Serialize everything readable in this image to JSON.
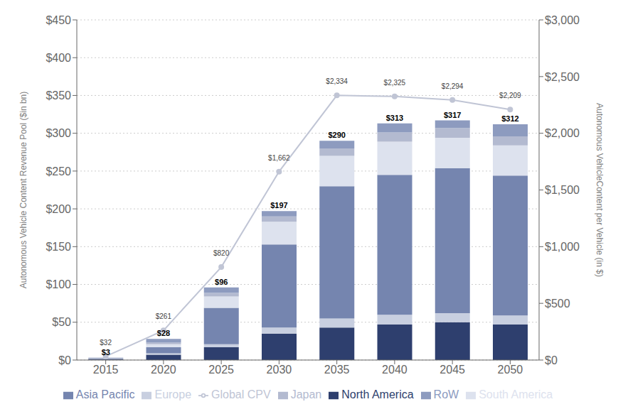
{
  "chart_data": {
    "type": "bar",
    "stacked": true,
    "categories": [
      2015,
      2020,
      2025,
      2030,
      2035,
      2040,
      2045,
      2050
    ],
    "series": [
      {
        "name": "North America",
        "color": "#2e3f6e",
        "values": [
          1.5,
          7.0,
          17.0,
          35.0,
          43.0,
          47.0,
          50.0,
          47.0
        ]
      },
      {
        "name": "Europe",
        "color": "#c8cfe0",
        "values": [
          0.3,
          2.0,
          4.0,
          8.0,
          12.0,
          13.0,
          12.0,
          12.0
        ]
      },
      {
        "name": "Asia Pacific",
        "color": "#7585af",
        "values": [
          0.7,
          8.0,
          48.0,
          110.0,
          175.0,
          185.0,
          192.0,
          185.0
        ]
      },
      {
        "name": "South America",
        "color": "#dde2ee",
        "values": [
          0.2,
          4.0,
          15.0,
          30.0,
          40.0,
          44.0,
          40.0,
          40.0
        ]
      },
      {
        "name": "Japan",
        "color": "#b3bad0",
        "values": [
          0.1,
          2.0,
          5.0,
          7.0,
          10.0,
          12.0,
          13.0,
          12.0
        ]
      },
      {
        "name": "RoW",
        "color": "#8d9bbf",
        "values": [
          0.2,
          5.0,
          7.0,
          7.0,
          10.0,
          12.0,
          10.0,
          16.0
        ]
      },
      {
        "name": "Global CPV",
        "type": "line",
        "axis": "y2",
        "color": "#c0c5d5",
        "marker": "circle",
        "values": [
          32,
          261,
          820,
          1662,
          2334,
          2325,
          2294,
          2209
        ],
        "data_labels": true,
        "value_labels": [
          "$32",
          "$261",
          "$820",
          "$1,662",
          "$2,334",
          "$2,325",
          "$2,294",
          "$2,209"
        ]
      }
    ],
    "totals": [
      3,
      28,
      96,
      197,
      290,
      313,
      317,
      312
    ],
    "total_labels": [
      "$3",
      "$28",
      "$96",
      "$197",
      "$290",
      "$313",
      "$317",
      "$312"
    ],
    "ylabel": "Autonomous Vehicle Content Revenue Pool ($in bn)",
    "y2label": "Autonomous VehicleContent per Vehicle (in $)",
    "ylim": [
      0,
      450
    ],
    "yticks": [
      {
        "value": 0,
        "label": "$0"
      },
      {
        "value": 50,
        "label": "$50"
      },
      {
        "value": 100,
        "label": "$100"
      },
      {
        "value": 150,
        "label": "$150"
      },
      {
        "value": 200,
        "label": "$200"
      },
      {
        "value": 250,
        "label": "$250"
      },
      {
        "value": 300,
        "label": "$300"
      },
      {
        "value": 350,
        "label": "$350"
      },
      {
        "value": 400,
        "label": "$400"
      },
      {
        "value": 450,
        "label": "$450"
      }
    ],
    "y2lim": [
      0,
      3000
    ],
    "y2ticks": [
      {
        "value": 0,
        "label": "$0"
      },
      {
        "value": 500,
        "label": "$500"
      },
      {
        "value": 1000,
        "label": "$1,000"
      },
      {
        "value": 1500,
        "label": "$1,500"
      },
      {
        "value": 2000,
        "label": "$2,000"
      },
      {
        "value": 2500,
        "label": "$2,500"
      },
      {
        "value": 3000,
        "label": "$3,000"
      }
    ],
    "grid": true,
    "legend": "bottom"
  }
}
